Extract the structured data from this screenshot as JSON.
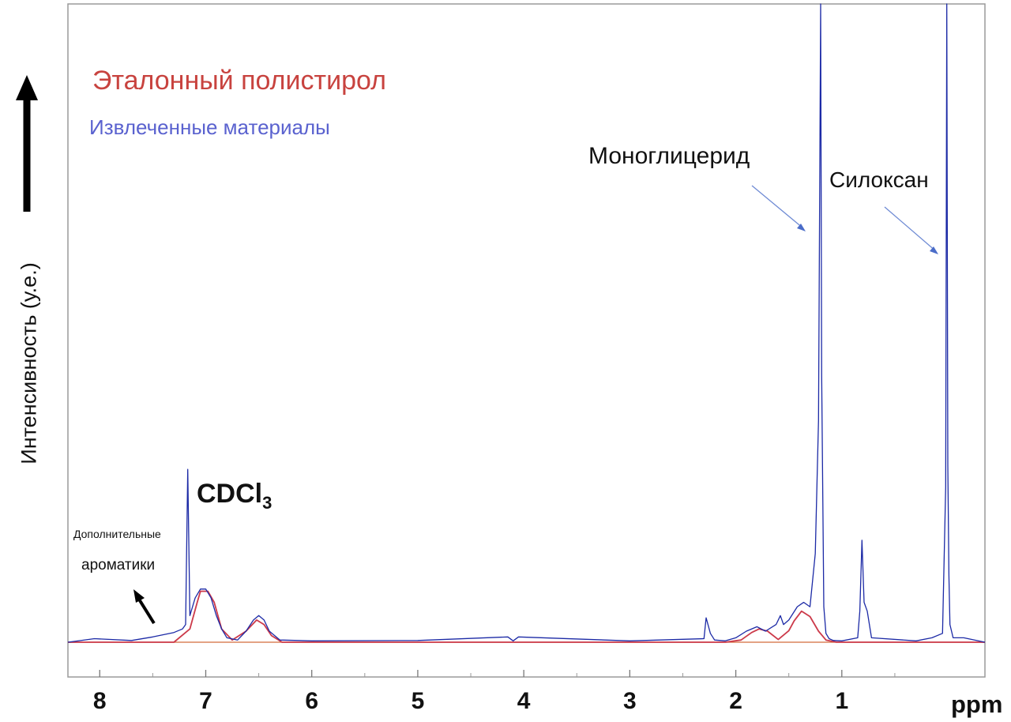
{
  "chart_data": {
    "type": "line",
    "xlabel": "ppm",
    "ylabel": "Интенсивность (у.е.)",
    "x_reversed": true,
    "xlim": [
      8.3,
      -0.35
    ],
    "ylim": [
      -0.08,
      1.44
    ],
    "xticks": [
      8,
      7,
      6,
      5,
      4,
      3,
      2,
      1
    ],
    "grid": false,
    "legend": [
      {
        "name": "Эталонный полистирол",
        "color": "#c8433f"
      },
      {
        "name": "Извлеченные материалы",
        "color": "#5a62cf"
      }
    ],
    "series": [
      {
        "name": "Эталонный полистирол",
        "color": "#cc3a4a",
        "x": [
          8.3,
          7.3,
          7.15,
          7.08,
          7.05,
          6.98,
          6.92,
          6.85,
          6.75,
          6.62,
          6.52,
          6.45,
          6.38,
          6.28,
          6.0,
          2.1,
          1.95,
          1.85,
          1.78,
          1.7,
          1.6,
          1.5,
          1.45,
          1.38,
          1.3,
          1.22,
          1.15,
          1.05,
          0.9,
          -0.35
        ],
        "y": [
          0.0,
          0.0,
          0.03,
          0.09,
          0.115,
          0.115,
          0.09,
          0.03,
          0.005,
          0.025,
          0.05,
          0.04,
          0.015,
          0.0,
          0.0,
          0.0,
          0.005,
          0.022,
          0.03,
          0.025,
          0.006,
          0.026,
          0.048,
          0.07,
          0.058,
          0.025,
          0.005,
          0.0,
          0.0,
          0.0
        ]
      },
      {
        "name": "Извлеченные материалы",
        "color": "#1c2aa6",
        "x": [
          8.3,
          8.05,
          7.7,
          7.5,
          7.3,
          7.22,
          7.19,
          7.17,
          7.15,
          7.1,
          7.05,
          7.0,
          6.95,
          6.9,
          6.85,
          6.8,
          6.7,
          6.62,
          6.55,
          6.5,
          6.45,
          6.4,
          6.3,
          6.0,
          5.0,
          4.15,
          4.1,
          4.05,
          3.0,
          2.3,
          2.28,
          2.24,
          2.2,
          2.1,
          2.0,
          1.9,
          1.8,
          1.72,
          1.62,
          1.58,
          1.55,
          1.5,
          1.42,
          1.36,
          1.3,
          1.25,
          1.22,
          1.2,
          1.19,
          1.17,
          1.15,
          1.12,
          1.08,
          1.0,
          0.85,
          0.83,
          0.81,
          0.79,
          0.76,
          0.72,
          0.3,
          0.15,
          0.05,
          0.02,
          0.01,
          0.0,
          -0.01,
          -0.02,
          -0.05,
          -0.15,
          -0.35
        ],
        "y": [
          0.0,
          0.008,
          0.004,
          0.012,
          0.022,
          0.03,
          0.04,
          0.39,
          0.06,
          0.1,
          0.12,
          0.12,
          0.1,
          0.06,
          0.03,
          0.01,
          0.005,
          0.025,
          0.05,
          0.06,
          0.05,
          0.025,
          0.005,
          0.003,
          0.004,
          0.012,
          0.003,
          0.012,
          0.003,
          0.008,
          0.055,
          0.02,
          0.005,
          0.003,
          0.01,
          0.025,
          0.035,
          0.025,
          0.04,
          0.06,
          0.04,
          0.05,
          0.08,
          0.09,
          0.08,
          0.2,
          0.5,
          1.44,
          0.6,
          0.08,
          0.02,
          0.008,
          0.004,
          0.003,
          0.01,
          0.07,
          0.23,
          0.09,
          0.07,
          0.01,
          0.003,
          0.01,
          0.02,
          0.35,
          1.44,
          0.4,
          0.15,
          0.04,
          0.01,
          0.01,
          0.0
        ]
      }
    ],
    "annotations": {
      "monoglyceride": "Моноглицерид",
      "siloxane": "Силоксан",
      "cdcl3_main": "CDCl",
      "cdcl3_sub": "3",
      "extra_line1": "Дополнительные",
      "extra_line2": "ароматики"
    }
  }
}
